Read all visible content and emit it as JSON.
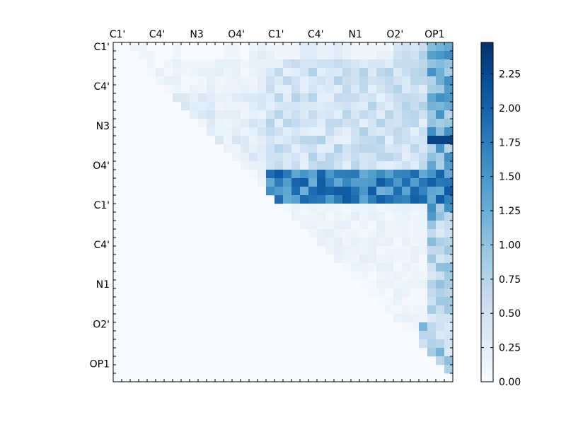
{
  "chart_data": {
    "type": "heatmap",
    "title": "",
    "xlabel": "",
    "ylabel": "",
    "n": 40,
    "xticklabels": [
      "C1'",
      "C4'",
      "N3",
      "O4'",
      "C1'",
      "C4'",
      "N1",
      "O2'",
      "OP1"
    ],
    "yticklabels": [
      "C1'",
      "C4'",
      "N3",
      "O4'",
      "C1'",
      "C4'",
      "N1",
      "O2'",
      "OP1"
    ],
    "label_index_step": 4.67,
    "colorbar": {
      "min": 0.0,
      "max": 2.48,
      "ticks": [
        0.0,
        0.25,
        0.5,
        0.75,
        1.0,
        1.25,
        1.5,
        1.75,
        2.0,
        2.25
      ],
      "tick_labels": [
        "0.00",
        "0.25",
        "0.50",
        "0.75",
        "1.00",
        "1.25",
        "1.50",
        "1.75",
        "2.00",
        "2.25"
      ],
      "colormap": "Blues",
      "colors": [
        "#f7fbff",
        "#deebf7",
        "#c6dbef",
        "#9ecae1",
        "#6baed6",
        "#4292c6",
        "#2171b5",
        "#08519c",
        "#08306b"
      ]
    },
    "values_upper_triangle_approx": [
      [
        0.0,
        0.0,
        0.1,
        0.1,
        0.0,
        0.0,
        0.0,
        0.1,
        0.0,
        0.0,
        0.0,
        0.0,
        0.0,
        0.1,
        0.1,
        0.0,
        0.1,
        0.2,
        0.1,
        0.1,
        0.1,
        0.1,
        0.3,
        0.3,
        0.2,
        0.2,
        0.3,
        0.2,
        0.1,
        0.1,
        0.1,
        0.1,
        0.1,
        0.4,
        0.5,
        0.4,
        0.6,
        1.1,
        1.2,
        1.3
      ],
      [
        0.0,
        0.0,
        0.0,
        0.1,
        0.1,
        0.0,
        0.0,
        0.1,
        0.0,
        0.0,
        0.0,
        0.0,
        0.0,
        0.1,
        0.1,
        0.0,
        0.2,
        0.3,
        0.2,
        0.1,
        0.1,
        0.1,
        0.3,
        0.3,
        0.2,
        0.2,
        0.3,
        0.2,
        0.1,
        0.1,
        0.1,
        0.2,
        0.2,
        0.5,
        0.6,
        0.5,
        0.8,
        1.4,
        1.5,
        1.6
      ],
      [
        0.0,
        0.0,
        0.0,
        0.0,
        0.1,
        0.0,
        0.1,
        0.2,
        0.1,
        0.1,
        0.1,
        0.1,
        0.2,
        0.2,
        0.2,
        0.1,
        0.2,
        0.2,
        0.2,
        0.2,
        0.5,
        0.6,
        0.4,
        0.4,
        0.5,
        0.5,
        0.6,
        0.5,
        0.4,
        0.3,
        0.4,
        0.4,
        0.3,
        0.6,
        0.6,
        0.6,
        0.7,
        1.0,
        1.1,
        1.0
      ]
    ]
  }
}
